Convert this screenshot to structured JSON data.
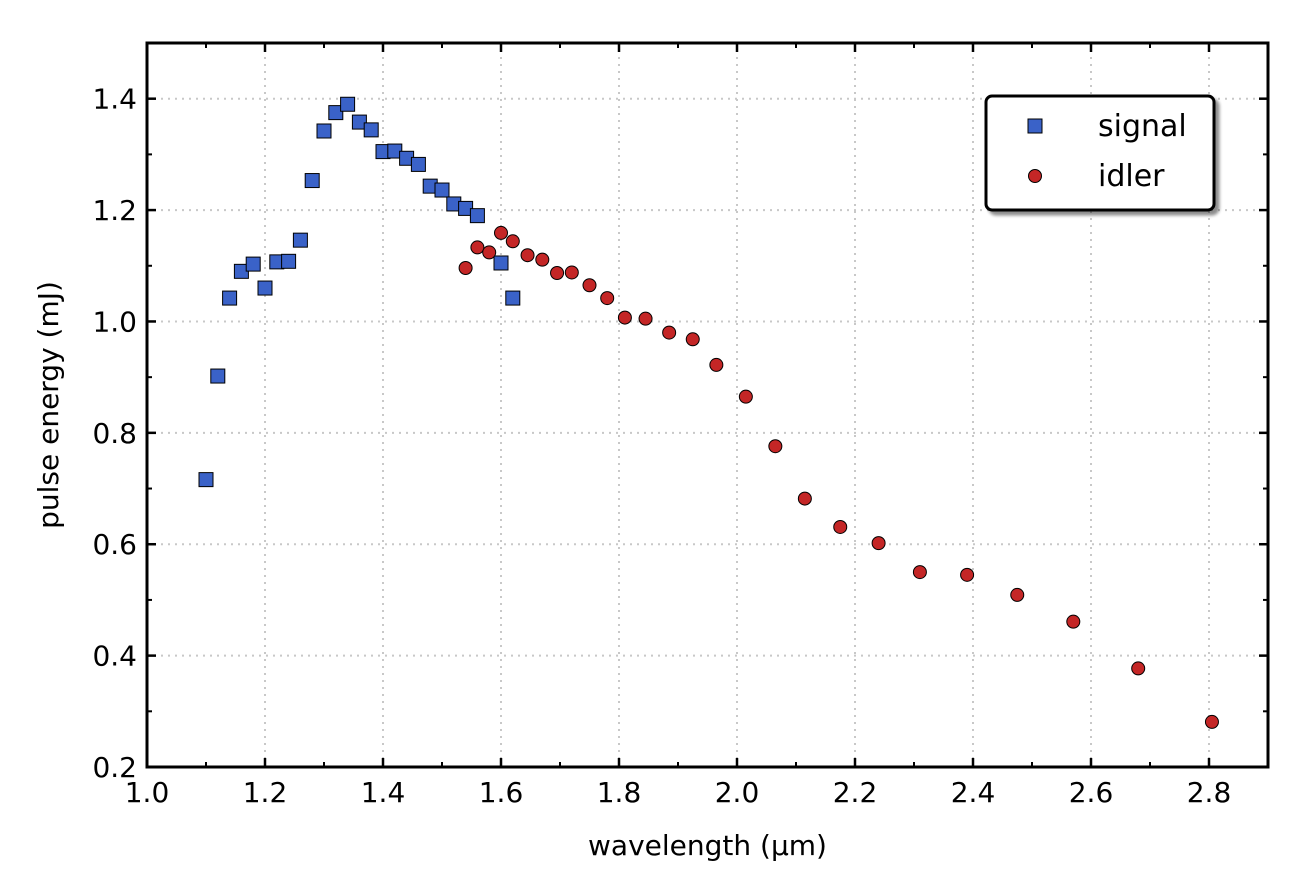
{
  "chart_data": {
    "type": "scatter",
    "title": "",
    "xlabel": "wavelength (µm)",
    "ylabel": "pulse energy (mJ)",
    "xlim": [
      1.0,
      2.9
    ],
    "ylim": [
      0.2,
      1.5
    ],
    "x_ticks": [
      1.0,
      1.2,
      1.4,
      1.6,
      1.8,
      2.0,
      2.2,
      2.4,
      2.6,
      2.8
    ],
    "y_ticks": [
      0.2,
      0.4,
      0.6,
      0.8,
      1.0,
      1.2,
      1.4
    ],
    "x_tick_labels": [
      "1.0",
      "1.2",
      "1.4",
      "1.6",
      "1.8",
      "2.0",
      "2.2",
      "2.4",
      "2.6",
      "2.8"
    ],
    "y_tick_labels": [
      "0.2",
      "0.4",
      "0.6",
      "0.8",
      "1.0",
      "1.2",
      "1.4"
    ],
    "grid": true,
    "legend_position": "top-right",
    "series": [
      {
        "name": "signal",
        "marker": "square",
        "color": "#3a62c8",
        "x": [
          1.1,
          1.12,
          1.14,
          1.16,
          1.18,
          1.2,
          1.22,
          1.24,
          1.26,
          1.28,
          1.3,
          1.32,
          1.34,
          1.36,
          1.38,
          1.4,
          1.42,
          1.44,
          1.46,
          1.48,
          1.5,
          1.52,
          1.54,
          1.56,
          1.6,
          1.62
        ],
        "y": [
          0.716,
          0.902,
          1.042,
          1.09,
          1.103,
          1.06,
          1.107,
          1.108,
          1.146,
          1.253,
          1.342,
          1.375,
          1.39,
          1.358,
          1.344,
          1.305,
          1.306,
          1.293,
          1.282,
          1.243,
          1.236,
          1.211,
          1.203,
          1.19,
          1.105,
          1.042
        ]
      },
      {
        "name": "idler",
        "marker": "circle",
        "color": "#c42626",
        "x": [
          1.54,
          1.56,
          1.58,
          1.6,
          1.62,
          1.645,
          1.67,
          1.695,
          1.72,
          1.75,
          1.78,
          1.81,
          1.845,
          1.885,
          1.925,
          1.965,
          2.015,
          2.065,
          2.115,
          2.175,
          2.24,
          2.31,
          2.39,
          2.475,
          2.57,
          2.68,
          2.805
        ],
        "y": [
          1.096,
          1.133,
          1.124,
          1.159,
          1.144,
          1.119,
          1.111,
          1.087,
          1.088,
          1.065,
          1.042,
          1.007,
          1.005,
          0.98,
          0.968,
          0.922,
          0.865,
          0.776,
          0.682,
          0.631,
          0.602,
          0.55,
          0.545,
          0.509,
          0.461,
          0.377,
          0.281
        ]
      }
    ]
  }
}
